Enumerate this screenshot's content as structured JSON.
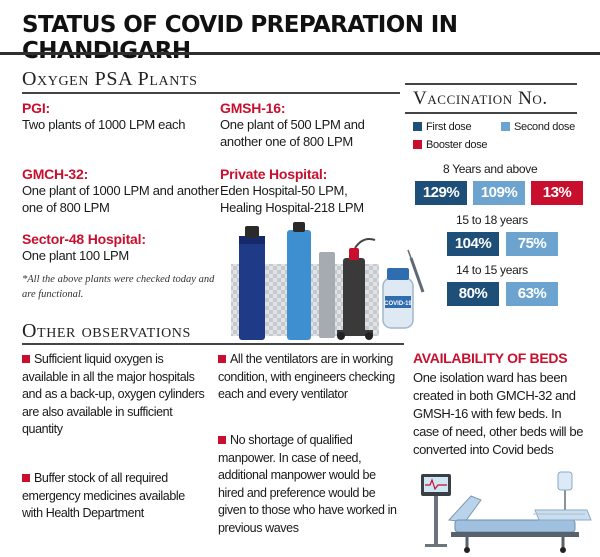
{
  "title": "STATUS OF COVID PREPARATION IN CHANDIGARH",
  "oxygen": {
    "heading": "Oxygen PSA Plants",
    "plants": [
      {
        "name": "PGI:",
        "desc": "Two plants of 1000 LPM each"
      },
      {
        "name": "GMCH-32:",
        "desc": "One plant of 1000 LPM and another one of 800 LPM"
      },
      {
        "name": "Sector-48 Hospital:",
        "desc": "One plant 100 LPM"
      },
      {
        "name": "GMSH-16:",
        "desc": "One plant of 500 LPM and another one of 800 LPM"
      },
      {
        "name": "Private Hospital:",
        "desc": "Eden Hospital-50 LPM, Healing Hospital-218 LPM"
      }
    ],
    "note": "*All the above plants were checked today and are functional."
  },
  "vaccination": {
    "heading": "Vaccination No.",
    "legend": {
      "first": "First dose",
      "second": "Second dose",
      "booster": "Booster dose"
    },
    "groups": [
      {
        "label": "8 Years and above",
        "first": "129%",
        "second": "109%",
        "booster": "13%"
      },
      {
        "label": "15 to 18 years",
        "first": "104%",
        "second": "75%"
      },
      {
        "label": "14 to 15 years",
        "first": "80%",
        "second": "63%"
      }
    ],
    "colors": {
      "first": "#1e4f78",
      "second": "#6da3cf",
      "booster": "#c8102e"
    }
  },
  "observations": {
    "heading": "Other observations",
    "items": [
      "Sufficient liquid oxygen is available in all the major hospitals and as a back-up, oxygen cylinders are also available in sufficient quantity",
      "Buffer stock of all required emergency medicines available with Health Department",
      "All the ventilators are in working condition, with engineers checking each and every ventilator",
      "No shortage of qualified manpower. In case of need, additional manpower would be hired and preference would be given to those who have worked in previous waves"
    ]
  },
  "beds": {
    "heading": "AVAILABILITY OF BEDS",
    "text": "One isolation ward has been created in both GMCH-32 and GMSH-16 with few beds. In case of need, other beds will be converted into Covid beds"
  },
  "illustration": {
    "vial_label": "COVID-19"
  }
}
